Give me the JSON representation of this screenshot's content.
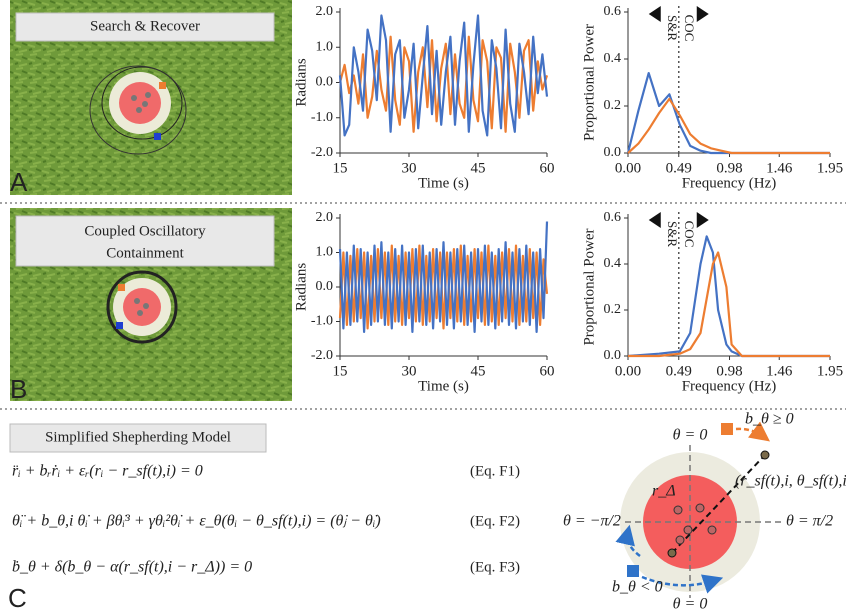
{
  "panels": {
    "a": {
      "letter": "A",
      "label": "Search & Recover"
    },
    "b": {
      "letter": "B",
      "label_lines": [
        "Coupled Oscillatory",
        "Containment"
      ]
    },
    "c": {
      "letter": "C",
      "title": "Simplified Shepherding Model",
      "equations": [
        {
          "text": "r̈ᵢ + bᵣṙᵢ + εᵣ(rᵢ − r_sf(t),i) = 0",
          "label": "(Eq. F1)"
        },
        {
          "text": "θ̈ᵢ + b_θ,i θ̇ᵢ + βθ̇ᵢ³ + γθᵢ²θ̇ᵢ + ε_θ(θᵢ − θ_sf(t),i) = (θ̇ⱼ − θ̇ᵢ)",
          "label": "(Eq. F2)"
        },
        {
          "text": "ḃ_θ + δ(b_θ − α(r_sf(t),i − r_Δ)) = 0",
          "label": "(Eq. F3)"
        }
      ],
      "diagram": {
        "theta_top": "θ = 0",
        "theta_bottom": "θ = 0",
        "theta_left": "θ = −π/2",
        "theta_right": "θ = π/2",
        "r_delta": "r_Δ",
        "target": "(r_sf(t),i, θ_sf(t),i",
        "b_pos": "b_θ ≥ 0",
        "b_neg": "b_θ < 0"
      }
    }
  },
  "chart_data": [
    {
      "type": "line",
      "xlabel": "Time (s)",
      "ylabel": "Radians",
      "x": [
        15,
        16,
        17,
        18,
        19,
        20,
        21,
        22,
        23,
        24,
        25,
        26,
        27,
        28,
        29,
        30,
        31,
        32,
        33,
        34,
        35,
        36,
        37,
        38,
        39,
        40,
        41,
        42,
        43,
        44,
        45,
        46,
        47,
        48,
        49,
        50,
        51,
        52,
        53,
        54,
        55,
        56,
        57,
        58,
        59,
        60
      ],
      "series": [
        {
          "color": "#ed7d31",
          "values": [
            0.0,
            0.5,
            -0.3,
            0.2,
            -0.6,
            0.8,
            -1.0,
            -0.4,
            0.9,
            -0.2,
            -0.8,
            1.3,
            -0.5,
            -1.2,
            1.0,
            0.6,
            -1.4,
            0.3,
            1.0,
            -0.7,
            1.2,
            -1.1,
            0.4,
            1.1,
            -0.9,
            0.8,
            -0.6,
            -1.0,
            1.3,
            -0.5,
            -1.1,
            1.2,
            0.6,
            -1.3,
            1.0,
            0.7,
            -1.4,
            1.1,
            0.3,
            -1.0,
            0.9,
            1.2,
            -0.8,
            0.6,
            -0.2,
            0.2
          ]
        },
        {
          "color": "#4472c4",
          "values": [
            0.2,
            -1.5,
            -1.2,
            1.0,
            0.3,
            -0.8,
            1.5,
            0.9,
            -0.5,
            1.9,
            1.2,
            -1.4,
            0.8,
            1.2,
            -1.0,
            -0.2,
            1.1,
            -1.3,
            0.2,
            1.6,
            -0.9,
            0.9,
            -1.2,
            0.3,
            1.3,
            -1.2,
            0.6,
            1.7,
            -1.4,
            0.5,
            1.9,
            -0.8,
            -1.5,
            1.2,
            0.4,
            -1.3,
            1.5,
            -0.6,
            -1.4,
            1.1,
            0.3,
            -0.9,
            1.3,
            -0.3,
            0.8,
            -0.4
          ]
        }
      ],
      "xlim": [
        15,
        60
      ],
      "xticks": [
        15,
        30,
        45,
        60
      ],
      "ylim": [
        -2,
        2
      ],
      "yticks": [
        {
          "value": -2,
          "label": "-2.0"
        },
        {
          "value": -1,
          "label": "-1.0"
        },
        {
          "value": 0,
          "label": "0.0"
        },
        {
          "value": 1,
          "label": "1.0"
        },
        {
          "value": 2,
          "label": "2.0"
        }
      ]
    },
    {
      "type": "line",
      "xlabel": "Frequency (Hz)",
      "ylabel": "Proportional Power",
      "x": [
        0,
        0.1,
        0.2,
        0.3,
        0.4,
        0.5,
        0.6,
        0.7,
        0.8,
        0.9,
        1.0,
        1.5,
        1.95
      ],
      "series": [
        {
          "color": "#4472c4",
          "values": [
            0,
            0.18,
            0.34,
            0.2,
            0.25,
            0.12,
            0.03,
            0.01,
            0,
            0,
            0,
            0,
            0
          ]
        },
        {
          "color": "#ed7d31",
          "values": [
            0,
            0.04,
            0.1,
            0.17,
            0.23,
            0.16,
            0.08,
            0.04,
            0.02,
            0.01,
            0,
            0,
            0
          ]
        }
      ],
      "xlim": [
        0,
        1.95
      ],
      "xticks": [
        {
          "value": 0,
          "label": "0.00"
        },
        0.49,
        0.98,
        1.46,
        1.95
      ],
      "ylim": [
        0,
        0.6
      ],
      "yticks": [
        {
          "value": 0,
          "label": "0.0"
        },
        0.2,
        0.4,
        0.6
      ],
      "vline": 0.49,
      "left_label": "S&R",
      "right_label": "COC"
    },
    {
      "type": "line",
      "xlabel": "Time (s)",
      "ylabel": "Radians",
      "x": [
        15,
        15.75,
        16.5,
        17.25,
        18,
        18.75,
        19.5,
        20.25,
        21,
        21.75,
        22.5,
        23.25,
        24,
        24.75,
        25.5,
        26.25,
        27,
        27.75,
        28.5,
        29.25,
        30,
        30.75,
        31.5,
        32.25,
        33,
        33.75,
        34.5,
        35.25,
        36,
        36.75,
        37.5,
        38.25,
        39,
        39.75,
        40.5,
        41.25,
        42,
        42.75,
        43.5,
        44.25,
        45,
        45.75,
        46.5,
        47.25,
        48,
        48.75,
        49.5,
        50.25,
        51,
        51.75,
        52.5,
        53.25,
        54,
        54.75,
        55.5,
        56.25,
        57,
        57.75,
        58.5,
        59.25,
        60
      ],
      "series": [
        {
          "color": "#ed7d31",
          "values": [
            -0.9,
            1.0,
            -1.1,
            0.9,
            -1.0,
            1.1,
            -0.9,
            1.0,
            -1.2,
            0.9,
            -1.0,
            1.1,
            -0.9,
            1.0,
            -1.1,
            1.2,
            -1.0,
            0.9,
            -1.1,
            1.0,
            -0.9,
            1.1,
            -1.0,
            1.2,
            -1.1,
            0.9,
            -1.0,
            1.1,
            -0.9,
            1.0,
            -1.2,
            1.0,
            -0.9,
            1.1,
            -1.0,
            1.2,
            -1.1,
            0.9,
            -1.0,
            1.1,
            -0.9,
            1.0,
            -1.1,
            1.2,
            -1.0,
            0.9,
            -1.1,
            1.0,
            -0.9,
            1.1,
            -1.0,
            1.2,
            -1.1,
            0.9,
            -1.0,
            1.1,
            -0.9,
            1.0,
            -1.1,
            0.8,
            -0.2
          ]
        },
        {
          "color": "#4472c4",
          "values": [
            1.1,
            -1.2,
            1.0,
            -1.1,
            1.2,
            -1.0,
            1.1,
            -1.3,
            1.0,
            -1.1,
            1.2,
            -1.0,
            1.3,
            -1.1,
            1.0,
            -1.2,
            1.1,
            -1.0,
            1.2,
            -1.1,
            1.0,
            -1.3,
            1.1,
            -1.0,
            1.2,
            -1.1,
            1.0,
            -1.2,
            1.1,
            -1.0,
            1.3,
            -1.1,
            1.0,
            -1.2,
            1.1,
            -1.0,
            1.2,
            -1.1,
            1.0,
            -1.3,
            1.1,
            -1.0,
            1.2,
            -1.1,
            1.0,
            -1.2,
            1.1,
            -1.0,
            1.3,
            -1.1,
            1.0,
            -1.2,
            1.1,
            -1.0,
            1.2,
            -1.1,
            1.0,
            -1.3,
            1.1,
            -0.9,
            1.9
          ]
        }
      ],
      "xlim": [
        15,
        60
      ],
      "xticks": [
        15,
        30,
        45,
        60
      ],
      "ylim": [
        -2,
        2
      ],
      "yticks": [
        {
          "value": -2,
          "label": "-2.0"
        },
        {
          "value": -1,
          "label": "-1.0"
        },
        {
          "value": 0,
          "label": "0.0"
        },
        {
          "value": 1,
          "label": "1.0"
        },
        {
          "value": 2,
          "label": "2.0"
        }
      ]
    },
    {
      "type": "line",
      "xlabel": "Frequency (Hz)",
      "ylabel": "Proportional Power",
      "x": [
        0,
        0.3,
        0.5,
        0.6,
        0.7,
        0.76,
        0.82,
        0.87,
        0.95,
        1.0,
        1.1,
        1.5,
        1.95
      ],
      "series": [
        {
          "color": "#4472c4",
          "values": [
            0,
            0.01,
            0.02,
            0.1,
            0.4,
            0.52,
            0.45,
            0.2,
            0.05,
            0.02,
            0,
            0,
            0
          ]
        },
        {
          "color": "#ed7d31",
          "values": [
            0,
            0,
            0.01,
            0.03,
            0.1,
            0.25,
            0.4,
            0.45,
            0.3,
            0.05,
            0,
            0,
            0
          ]
        }
      ],
      "xlim": [
        0,
        1.95
      ],
      "xticks": [
        {
          "value": 0,
          "label": "0.00"
        },
        0.49,
        0.98,
        1.46,
        1.95
      ],
      "ylim": [
        0,
        0.6
      ],
      "yticks": [
        {
          "value": 0,
          "label": "0.0"
        },
        0.2,
        0.4,
        0.6
      ],
      "vline": 0.49,
      "left_label": "S&R",
      "right_label": "COC"
    }
  ]
}
